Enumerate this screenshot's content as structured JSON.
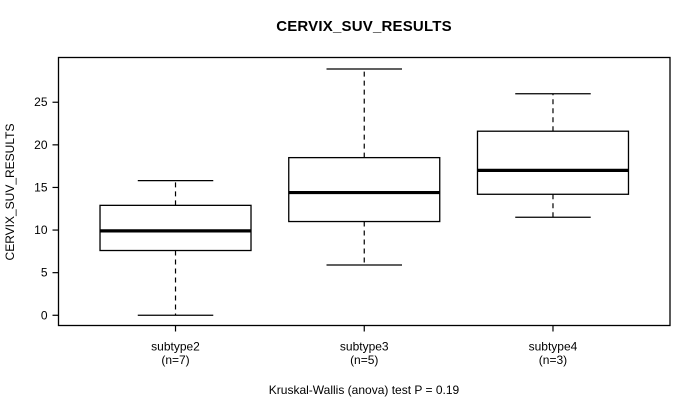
{
  "title": "CERVIX_SUV_RESULTS",
  "caption": "Kruskal-Wallis (anova) test P = 0.19",
  "y_axis": {
    "label": "CERVIX_SUV_RESULTS",
    "tick_labels": [
      "0",
      "5",
      "10",
      "15",
      "20",
      "25"
    ]
  },
  "x_axis": {
    "labels": [
      [
        "subtype2",
        "(n=7)"
      ],
      [
        "subtype3",
        "(n=5)"
      ],
      [
        "subtype4",
        "(n=3)"
      ]
    ]
  },
  "colors": {
    "line": "#000000",
    "box_fill": "#ffffff",
    "background": "#ffffff"
  },
  "chart_data": {
    "type": "boxplot",
    "title": "CERVIX_SUV_RESULTS",
    "ylabel": "CERVIX_SUV_RESULTS",
    "xlabel": "",
    "annotation": "Kruskal-Wallis (anova) test P = 0.19",
    "categories": [
      "subtype2",
      "subtype3",
      "subtype4"
    ],
    "category_sublabels": [
      "(n=7)",
      "(n=5)",
      "(n=3)"
    ],
    "series": [
      {
        "name": "subtype2",
        "n": 7,
        "whisker_low": 0.0,
        "q1": 7.6,
        "median": 9.9,
        "q3": 12.9,
        "whisker_high": 15.8
      },
      {
        "name": "subtype3",
        "n": 5,
        "whisker_low": 5.9,
        "q1": 11.0,
        "median": 14.4,
        "q3": 18.5,
        "whisker_high": 28.9
      },
      {
        "name": "subtype4",
        "n": 3,
        "whisker_low": 11.5,
        "q1": 14.2,
        "median": 17.0,
        "q3": 21.6,
        "whisker_high": 26.0
      }
    ],
    "yticks": [
      0,
      5,
      10,
      15,
      20,
      25
    ],
    "ylim": [
      -1.2,
      30.25
    ],
    "grid": false,
    "legend": null,
    "whisker_style": "dashed",
    "box_fill": "#ffffff",
    "line_color": "#000000"
  }
}
